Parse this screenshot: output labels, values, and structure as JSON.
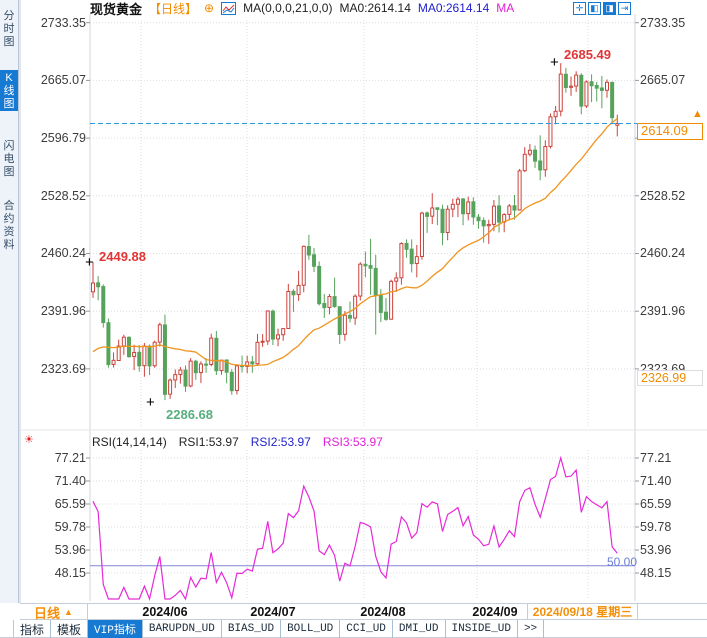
{
  "header": {
    "symbol": "现货黄金",
    "period_tag": "【日线】",
    "expand_glyph": "⊕",
    "ma_line": "MA(0,0,0,21,0,0)",
    "ma0_a": "MA0:2614.14",
    "ma0_b": "MA0:2614.14",
    "ma_tail": "MA",
    "toolbar_icons": [
      {
        "name": "pan-crosshair-icon",
        "glyph": "✛",
        "solid": false
      },
      {
        "name": "zoom-out-chart-icon",
        "glyph": "◧",
        "solid": false
      },
      {
        "name": "zoom-in-chart-icon",
        "glyph": "◨",
        "solid": true
      },
      {
        "name": "page-forward-icon",
        "glyph": "⇥",
        "solid": false
      }
    ]
  },
  "sidebar": {
    "tabs": [
      {
        "label": "分时图",
        "selected": false
      },
      {
        "label": "K线图",
        "selected": true
      },
      {
        "label": "闪电图",
        "selected": false
      },
      {
        "label": "合约资料",
        "selected": false
      }
    ]
  },
  "annotations": {
    "marker_glyph": "+",
    "first_high": "2449.88",
    "low": "2286.68",
    "high": "2685.49"
  },
  "price_marker": {
    "value": "2614.09",
    "arrow": "▲"
  },
  "ref_marker": {
    "value": "2326.99"
  },
  "rsi": {
    "icon_glyph": "☀",
    "title": "RSI(14,14,14)",
    "r1": "RSI1:53.97",
    "r2": "RSI2:53.97",
    "r3": "RSI3:53.97",
    "ref_label": "50.00"
  },
  "xaxis": {
    "period_label": "日线",
    "period_arrow": "▲",
    "months": [
      "2024/06",
      "2024/07",
      "2024/08",
      "2024/09"
    ],
    "current_date": "2024/09/18 星期三"
  },
  "footer": {
    "tabs": [
      "指标",
      "模板",
      "VIP指标",
      "BARUPDN_UD",
      "BIAS_UD",
      "BOLL_UD",
      "CCI_UD",
      "DMI_UD",
      "INSIDE_UD",
      ">>"
    ],
    "selected_index": 2
  },
  "colors": {
    "up": "#cc423c",
    "down": "#57a35c",
    "ma": "#f0941e",
    "rsi_line": "#e62ad8",
    "rsi_ref": "#8585d8",
    "current_dash": "#2f9ae3",
    "accent_orange": "#f08c00",
    "accent_blue": "#1679d2",
    "grid": "#d9dde2"
  },
  "chart_data": {
    "type": "candlestick",
    "title": "现货黄金 日线",
    "ma_period": 21,
    "rsi_period": 14,
    "price_axis": [
      2733.35,
      2665.07,
      2596.79,
      2528.52,
      2460.24,
      2391.96,
      2323.69
    ],
    "price_axis_right_hidden": 2596.79,
    "rsi_axis": [
      77.21,
      71.4,
      65.59,
      59.78,
      53.96,
      48.15
    ],
    "rsi_ref_value": 50.0,
    "current_price": 2614.09,
    "ref_price": 2326.99,
    "markers": {
      "first_high": 2449.88,
      "low": 2286.68,
      "high": 2685.49
    },
    "x_axis_labels": [
      "2024/06",
      "2024/07",
      "2024/08",
      "2024/09",
      "2024/09/18 星期三"
    ],
    "candles": [
      [
        2414.9,
        2449.9,
        2407.7,
        2425.3
      ],
      [
        2425.5,
        2433.5,
        2404.9,
        2420.9
      ],
      [
        2421.1,
        2423.7,
        2372.5,
        2378.5
      ],
      [
        2378.3,
        2383.4,
        2325.2,
        2328.8
      ],
      [
        2329.0,
        2343.2,
        2325.3,
        2333.8
      ],
      [
        2333.6,
        2358.4,
        2333.1,
        2350.7
      ],
      [
        2350.9,
        2364.1,
        2340.4,
        2361.2
      ],
      [
        2361.0,
        2362.3,
        2336.8,
        2338.2
      ],
      [
        2338.4,
        2352.2,
        2322.2,
        2343.1
      ],
      [
        2343.3,
        2352.0,
        2320.5,
        2327.3
      ],
      [
        2327.5,
        2354.3,
        2314.4,
        2350.8
      ],
      [
        2350.6,
        2352.5,
        2316.3,
        2327.2
      ],
      [
        2327.4,
        2357.1,
        2325.0,
        2355.2
      ],
      [
        2355.4,
        2378.4,
        2350.1,
        2375.9
      ],
      [
        2375.7,
        2387.9,
        2286.7,
        2293.6
      ],
      [
        2293.8,
        2312.3,
        2288.2,
        2310.4
      ],
      [
        2310.6,
        2323.0,
        2301.1,
        2316.9
      ],
      [
        2317.1,
        2325.9,
        2306.3,
        2322.4
      ],
      [
        2322.2,
        2327.7,
        2296.5,
        2303.3
      ],
      [
        2303.5,
        2336.4,
        2301.9,
        2332.9
      ],
      [
        2332.7,
        2334.5,
        2310.8,
        2319.2
      ],
      [
        2319.4,
        2332.7,
        2306.9,
        2329.5
      ],
      [
        2329.3,
        2336.5,
        2319.0,
        2328.7
      ],
      [
        2328.9,
        2365.3,
        2326.7,
        2360.1
      ],
      [
        2359.9,
        2368.6,
        2316.5,
        2321.5
      ],
      [
        2321.7,
        2334.4,
        2316.9,
        2334.0
      ],
      [
        2334.2,
        2335.0,
        2306.6,
        2319.8
      ],
      [
        2319.6,
        2323.4,
        2293.1,
        2297.9
      ],
      [
        2298.1,
        2327.6,
        2293.5,
        2327.3
      ],
      [
        2327.5,
        2339.5,
        2319.3,
        2326.8
      ],
      [
        2326.6,
        2339.4,
        2318.6,
        2331.9
      ],
      [
        2332.1,
        2338.9,
        2319.1,
        2329.6
      ],
      [
        2329.8,
        2365.1,
        2327.2,
        2355.1
      ],
      [
        2355.3,
        2364.8,
        2349.7,
        2356.4
      ],
      [
        2356.6,
        2393.0,
        2352.1,
        2392.2
      ],
      [
        2392.0,
        2393.9,
        2352.0,
        2359.0
      ],
      [
        2359.2,
        2371.3,
        2350.5,
        2363.9
      ],
      [
        2364.1,
        2372.0,
        2357.0,
        2371.3
      ],
      [
        2371.5,
        2424.3,
        2370.9,
        2415.3
      ],
      [
        2415.5,
        2417.9,
        2391.2,
        2411.4
      ],
      [
        2411.6,
        2439.7,
        2404.1,
        2422.5
      ],
      [
        2422.7,
        2469.7,
        2414.4,
        2468.7
      ],
      [
        2468.5,
        2482.3,
        2452.8,
        2458.5
      ],
      [
        2458.7,
        2466.8,
        2438.2,
        2445.1
      ],
      [
        2444.9,
        2450.8,
        2398.7,
        2400.8
      ],
      [
        2401.0,
        2412.2,
        2384.0,
        2396.2
      ],
      [
        2396.4,
        2412.3,
        2388.2,
        2409.4
      ],
      [
        2409.2,
        2431.6,
        2396.0,
        2397.4
      ],
      [
        2397.2,
        2398.0,
        2353.2,
        2364.4
      ],
      [
        2364.6,
        2392.0,
        2357.0,
        2387.2
      ],
      [
        2387.0,
        2403.5,
        2378.8,
        2383.7
      ],
      [
        2383.9,
        2412.0,
        2375.8,
        2409.7
      ],
      [
        2409.9,
        2450.0,
        2404.6,
        2447.6
      ],
      [
        2447.4,
        2462.5,
        2432.1,
        2445.7
      ],
      [
        2445.9,
        2477.6,
        2411.4,
        2442.8
      ],
      [
        2442.6,
        2458.7,
        2364.2,
        2410.3
      ],
      [
        2410.5,
        2418.1,
        2379.1,
        2390.5
      ],
      [
        2390.7,
        2407.6,
        2380.6,
        2382.3
      ],
      [
        2382.5,
        2429.3,
        2381.9,
        2427.3
      ],
      [
        2427.5,
        2437.9,
        2414.8,
        2431.3
      ],
      [
        2431.5,
        2473.5,
        2423.4,
        2472.0
      ],
      [
        2472.2,
        2477.0,
        2455.1,
        2465.2
      ],
      [
        2465.4,
        2477.0,
        2437.8,
        2448.2
      ],
      [
        2448.4,
        2470.3,
        2432.0,
        2456.5
      ],
      [
        2456.7,
        2509.7,
        2452.9,
        2508.0
      ],
      [
        2508.2,
        2510.0,
        2484.6,
        2504.2
      ],
      [
        2504.4,
        2531.6,
        2495.1,
        2514.1
      ],
      [
        2514.3,
        2514.9,
        2493.8,
        2512.4
      ],
      [
        2512.6,
        2518.0,
        2470.1,
        2484.9
      ],
      [
        2485.1,
        2517.3,
        2475.9,
        2512.6
      ],
      [
        2512.8,
        2525.1,
        2503.3,
        2518.4
      ],
      [
        2518.6,
        2527.2,
        2503.4,
        2524.5
      ],
      [
        2524.7,
        2525.9,
        2493.6,
        2507.3
      ],
      [
        2507.5,
        2527.5,
        2499.5,
        2521.2
      ],
      [
        2521.4,
        2526.8,
        2494.4,
        2503.4
      ],
      [
        2503.2,
        2507.0,
        2489.5,
        2499.1
      ],
      [
        2499.3,
        2503.0,
        2473.1,
        2492.9
      ],
      [
        2493.1,
        2500.2,
        2471.6,
        2494.5
      ],
      [
        2494.7,
        2523.5,
        2486.6,
        2516.3
      ],
      [
        2516.5,
        2529.2,
        2485.1,
        2497.4
      ],
      [
        2497.6,
        2507.9,
        2485.4,
        2506.3
      ],
      [
        2506.5,
        2518.7,
        2499.8,
        2516.5
      ],
      [
        2516.7,
        2529.5,
        2500.2,
        2511.6
      ],
      [
        2511.8,
        2560.3,
        2511.0,
        2558.0
      ],
      [
        2558.2,
        2586.1,
        2556.6,
        2577.6
      ],
      [
        2577.8,
        2589.7,
        2575.2,
        2582.4
      ],
      [
        2582.6,
        2588.0,
        2561.5,
        2569.5
      ],
      [
        2569.7,
        2600.1,
        2546.9,
        2559.1
      ],
      [
        2559.3,
        2594.1,
        2551.1,
        2586.8
      ],
      [
        2587.0,
        2625.8,
        2584.6,
        2621.9
      ],
      [
        2622.1,
        2634.9,
        2613.1,
        2628.5
      ],
      [
        2628.7,
        2685.5,
        2622.6,
        2672.5
      ],
      [
        2672.3,
        2679.9,
        2650.5,
        2656.7
      ],
      [
        2656.9,
        2669.6,
        2646.8,
        2658.2
      ],
      [
        2658.4,
        2675.9,
        2651.5,
        2671.3
      ],
      [
        2671.1,
        2673.5,
        2624.9,
        2634.6
      ],
      [
        2634.8,
        2665.0,
        2632.5,
        2663.3
      ],
      [
        2663.5,
        2672.2,
        2639.3,
        2658.8
      ],
      [
        2659.0,
        2663.4,
        2640.0,
        2655.9
      ],
      [
        2656.1,
        2670.3,
        2632.0,
        2653.2
      ],
      [
        2653.4,
        2666.1,
        2644.6,
        2662.8
      ],
      [
        2662.6,
        2663.8,
        2615.4,
        2621.0
      ],
      [
        2612.0,
        2624.5,
        2598.8,
        2614.1
      ]
    ]
  }
}
